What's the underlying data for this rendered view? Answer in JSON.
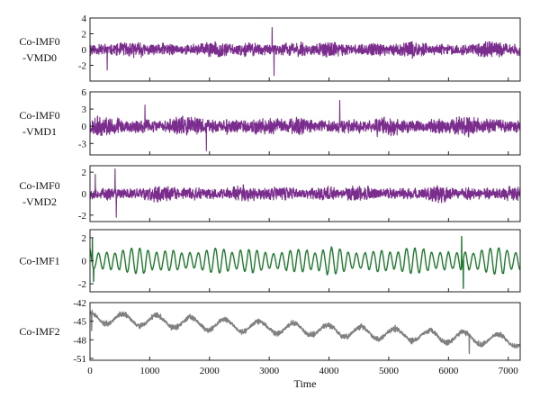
{
  "chart_data": {
    "type": "line",
    "xlabel": "Time",
    "xlim": [
      0,
      7200
    ],
    "xticks": [
      0,
      1000,
      2000,
      3000,
      4000,
      5000,
      6000,
      7000
    ],
    "xtick_labels": [
      "0",
      "1000",
      "2000",
      "3000",
      "4000",
      "5000",
      "6000",
      "7000"
    ],
    "panels": [
      {
        "label": [
          "Co-IMF0",
          "-VMD0"
        ],
        "ylim": [
          -4,
          4
        ],
        "yticks": [
          -2,
          0,
          2,
          4
        ],
        "ytick_labels": [
          "-2",
          "0",
          "2",
          "4"
        ],
        "color": "#7b2d8e",
        "signal": {
          "kind": "noise",
          "amp": 0.55,
          "freq": 0.45,
          "burst": 2.0,
          "seed": 11
        },
        "spikes": [
          {
            "x": 3050,
            "y": 2.8
          },
          {
            "x": 3080,
            "y": -3.3
          },
          {
            "x": 290,
            "y": -2.6
          }
        ]
      },
      {
        "label": [
          "Co-IMF0",
          "-VMD1"
        ],
        "ylim": [
          -5,
          6
        ],
        "yticks": [
          -3,
          0,
          3,
          6
        ],
        "ytick_labels": [
          "-3",
          "0",
          "3",
          "6"
        ],
        "color": "#7b2d8e",
        "signal": {
          "kind": "noise",
          "amp": 0.9,
          "freq": 0.3,
          "burst": 2.2,
          "seed": 23
        },
        "spikes": [
          {
            "x": 4180,
            "y": 4.5
          },
          {
            "x": 1950,
            "y": -4.3
          },
          {
            "x": 920,
            "y": 3.7
          }
        ]
      },
      {
        "label": [
          "Co-IMF0",
          "-VMD2"
        ],
        "ylim": [
          -2.6,
          2.6
        ],
        "yticks": [
          -2,
          0,
          2
        ],
        "ytick_labels": [
          "-2",
          "0",
          "2"
        ],
        "color": "#7b2d8e",
        "signal": {
          "kind": "noise",
          "amp": 0.4,
          "freq": 0.12,
          "burst": 2.4,
          "seed": 37
        },
        "spikes": [
          {
            "x": 420,
            "y": 2.3
          },
          {
            "x": 440,
            "y": -2.2
          },
          {
            "x": 90,
            "y": 1.8
          }
        ]
      },
      {
        "label": [
          "Co-IMF1"
        ],
        "ylim": [
          -2.7,
          2.7
        ],
        "yticks": [
          -2,
          0,
          2
        ],
        "ytick_labels": [
          "-2",
          "0",
          "2"
        ],
        "color": "#1f7a2e",
        "signal": {
          "kind": "osc",
          "amp": 0.75,
          "freq": 0.045,
          "burst": 1.9,
          "seed": 53
        },
        "spikes": [
          {
            "x": 40,
            "y": 1.9
          },
          {
            "x": 60,
            "y": -1.8
          },
          {
            "x": 6250,
            "y": -2.4
          },
          {
            "x": 6220,
            "y": 2.1
          }
        ]
      },
      {
        "label": [
          "Co-IMF2"
        ],
        "ylim": [
          -51.3,
          -42
        ],
        "yticks": [
          -51,
          -48,
          -45,
          -42
        ],
        "ytick_labels": [
          "-51",
          "-48",
          "-45",
          "-42"
        ],
        "color": "#808080",
        "signal": {
          "kind": "trend",
          "amp": 0.9,
          "freq": 0.011,
          "start": -44.2,
          "end": -48.0,
          "seed": 71
        },
        "spikes": [
          {
            "x": 30,
            "y": -46.5
          },
          {
            "x": 6350,
            "y": -50.2
          }
        ]
      }
    ]
  }
}
